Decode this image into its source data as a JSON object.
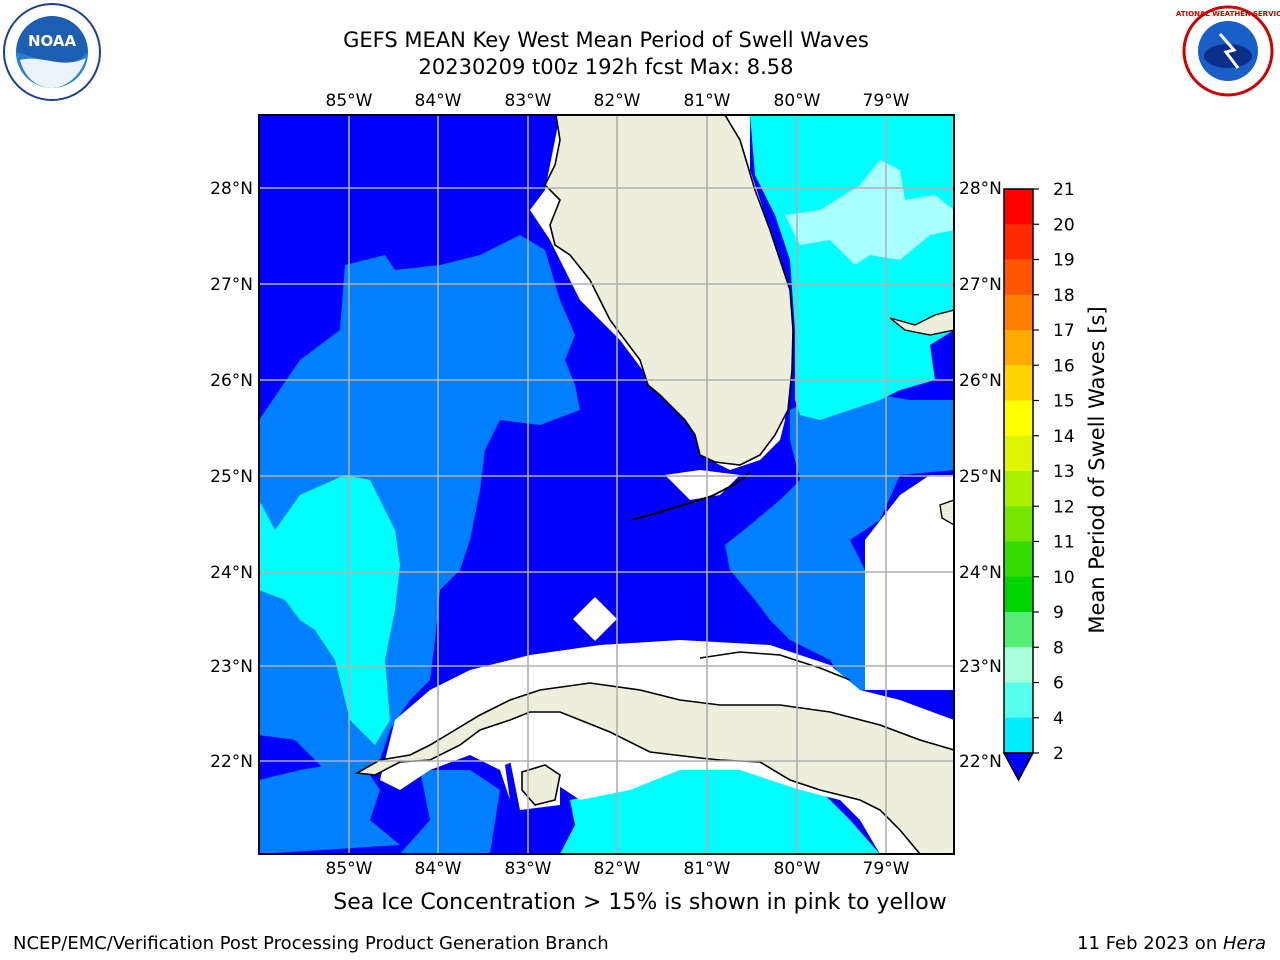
{
  "title": {
    "line1": "GEFS MEAN Key West Mean Period of Swell Waves",
    "line2": "20230209 t00z 192h fcst   Max: 8.58"
  },
  "logos": {
    "left": "NOAA",
    "right": "NATIONAL WEATHER SERVICE"
  },
  "map": {
    "lon_labels": [
      "85°W",
      "84°W",
      "83°W",
      "82°W",
      "81°W",
      "80°W",
      "79°W"
    ],
    "lat_labels": [
      "28°N",
      "27°N",
      "26°N",
      "25°N",
      "24°N",
      "23°N",
      "22°N"
    ],
    "land_color": "#eeeedd",
    "grid_color": "#b0b0b0"
  },
  "colorbar": {
    "label": "Mean Period of Swell Waves [s]",
    "ticks": [
      "21",
      "20",
      "19",
      "18",
      "17",
      "16",
      "15",
      "14",
      "13",
      "12",
      "11",
      "10",
      "9",
      "8",
      "6",
      "4",
      "2"
    ],
    "colors": [
      "#ff0000",
      "#ff2a00",
      "#ff5500",
      "#ff7f00",
      "#ffaa00",
      "#ffd400",
      "#ffff00",
      "#ddf500",
      "#aaee00",
      "#77e600",
      "#33dd00",
      "#00d400",
      "#55ee77",
      "#aaffdd",
      "#55ffee",
      "#00eeff",
      "#0080ff",
      "#0000ff"
    ]
  },
  "footer": {
    "note": "Sea Ice Concentration > 15% is shown in pink to yellow",
    "left": "NCEP/EMC/Verification Post Processing Product Generation Branch",
    "right_date": "11 Feb 2023 on ",
    "right_host": "Hera"
  }
}
